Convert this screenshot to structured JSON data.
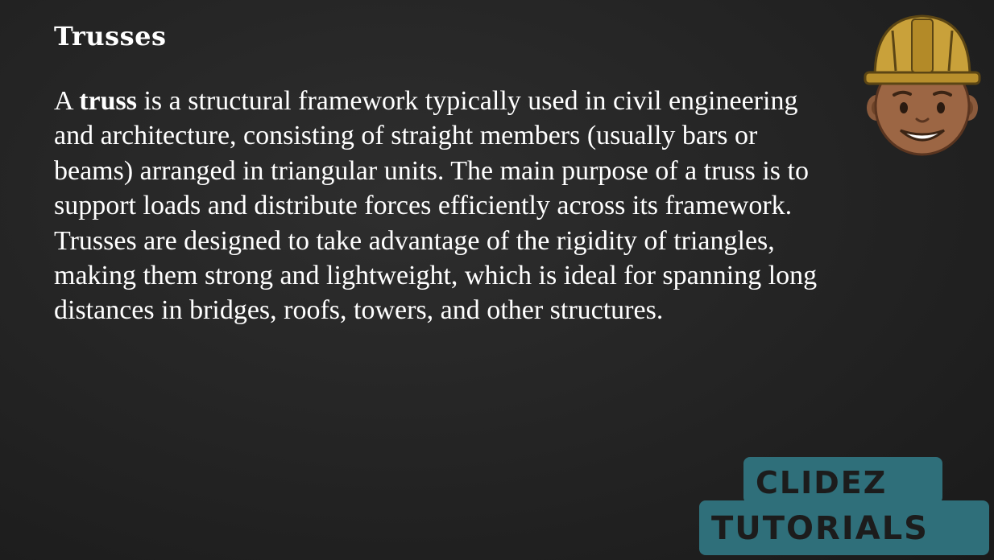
{
  "slide": {
    "title": "Trusses",
    "paragraph": {
      "lead": "A ",
      "bold_term": "truss",
      "rest": " is a structural framework typically used in civil engineering and architecture, consisting of straight members (usually bars or beams) arranged in triangular units. The main purpose of a truss is to support loads and distribute forces efficiently across its framework. Trusses are designed to take advantage of the rigidity of triangles, making them strong and lightweight, which is ideal for spanning long distances in bridges, roofs, towers, and other structures."
    }
  },
  "logo": {
    "line1": "CLIDEZ",
    "line2": "TUTORIALS"
  },
  "icons": {
    "mascot": "construction-worker-mascot-icon"
  },
  "colors": {
    "background": "#232323",
    "text": "#ffffff",
    "logo_box": "#2f6f7a",
    "helmet": "#c9a13a"
  }
}
